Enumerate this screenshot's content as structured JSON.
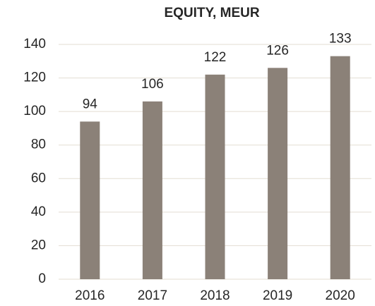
{
  "chart_data": {
    "type": "bar",
    "title": "EQUITY, MEUR",
    "categories": [
      "2016",
      "2017",
      "2018",
      "2019",
      "2020"
    ],
    "values": [
      94,
      106,
      122,
      126,
      133
    ],
    "color": "#8b8178",
    "ylim": [
      0,
      140
    ],
    "yticks": [
      0,
      20,
      40,
      60,
      80,
      100,
      120,
      140
    ],
    "grid": true
  }
}
